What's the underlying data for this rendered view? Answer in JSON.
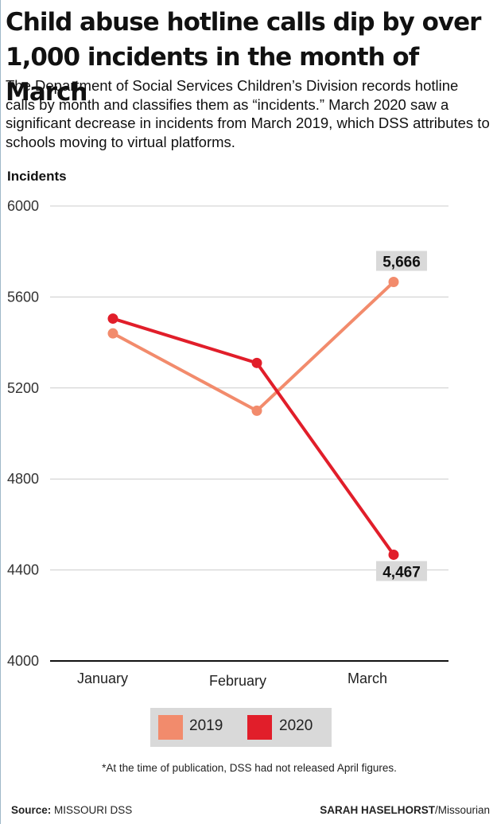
{
  "title": "Child abuse hotline calls dip by over 1,000 incidents in the month of March",
  "subtitle": "The Department of Social Services Children’s Division records hotline calls by month and classifies them as “incidents.” March 2020 saw a significant decrease in incidents from March 2019, which DSS attributes to schools moving to virtual platforms.",
  "footnote": "*At the time of publication, DSS had not released April figures.",
  "source": {
    "label": "Source:",
    "value": "MISSOURI DSS"
  },
  "credit": {
    "name": "SARAH HASELHORST",
    "org": "/Missourian"
  },
  "colors": {
    "s2019": "#f28b6c",
    "s2020": "#e11e2a",
    "grid": "#cccccc",
    "axis": "#111111",
    "labelBg": "#d9d9d9"
  },
  "chart_data": {
    "type": "line",
    "ylabel": "Incidents",
    "categories": [
      "January",
      "February",
      "March"
    ],
    "ylim": [
      4000,
      6000
    ],
    "yticks": [
      4000,
      4400,
      4800,
      5200,
      5600,
      6000
    ],
    "grid": true,
    "legend_placement": "bottom",
    "series": [
      {
        "name": "2019",
        "values": [
          5440,
          5100,
          5666
        ]
      },
      {
        "name": "2020",
        "values": [
          5505,
          5310,
          4467
        ]
      }
    ],
    "annotations": [
      {
        "series": 0,
        "index": 2,
        "text": "5,666"
      },
      {
        "series": 1,
        "index": 2,
        "text": "4,467"
      }
    ]
  }
}
